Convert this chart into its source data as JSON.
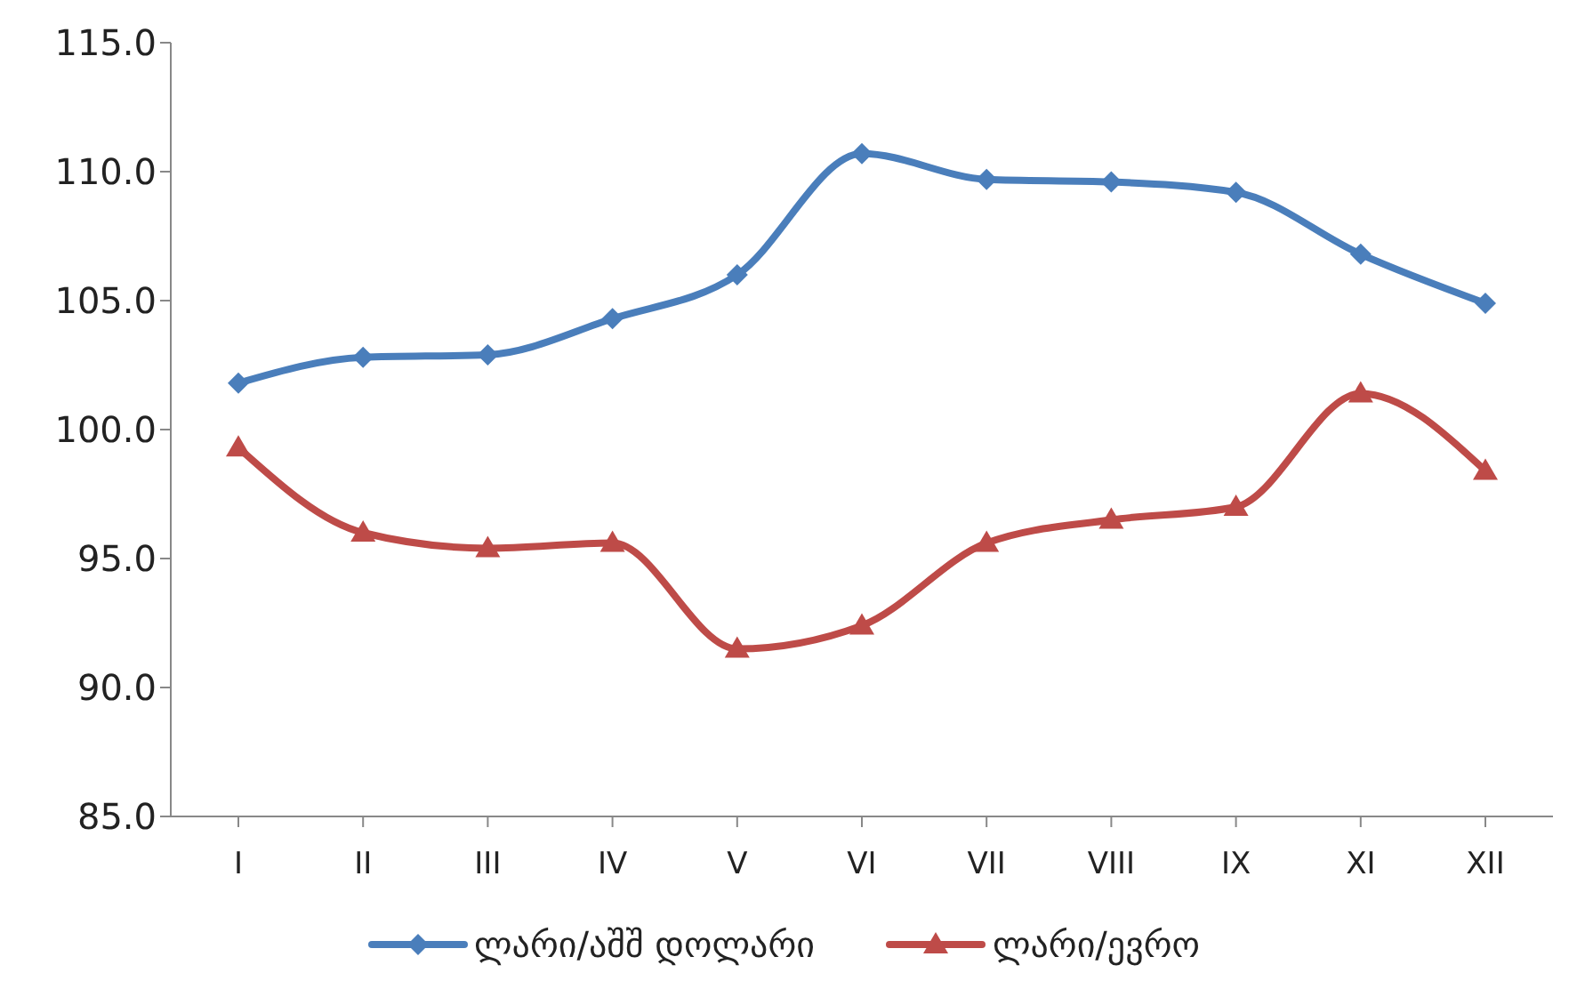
{
  "chart_data": {
    "type": "line",
    "categories": [
      "I",
      "II",
      "III",
      "IV",
      "V",
      "VI",
      "VII",
      "VIII",
      "IX",
      "XI",
      "XII"
    ],
    "series": [
      {
        "name": "ლარი/აშშ დოლარი",
        "color": "#4a7ebb",
        "marker": "diamond",
        "values": [
          101.8,
          102.8,
          102.9,
          104.3,
          106.0,
          110.7,
          109.7,
          109.6,
          109.2,
          106.8,
          104.9
        ]
      },
      {
        "name": "ლარი/ევრო",
        "color": "#be4b48",
        "marker": "triangle",
        "values": [
          99.3,
          96.0,
          95.4,
          95.6,
          91.5,
          92.4,
          95.6,
          96.5,
          97.0,
          101.4,
          98.4
        ]
      }
    ],
    "ylim": [
      85,
      115
    ],
    "yticks": [
      {
        "value": 85,
        "label": "85.0"
      },
      {
        "value": 90,
        "label": "90.0"
      },
      {
        "value": 95,
        "label": "95.0"
      },
      {
        "value": 100,
        "label": "100.0"
      },
      {
        "value": 105,
        "label": "105.0"
      },
      {
        "value": 110,
        "label": "110.0"
      },
      {
        "value": 115,
        "label": "115.0"
      }
    ],
    "grid": false,
    "legend": "bottom"
  }
}
